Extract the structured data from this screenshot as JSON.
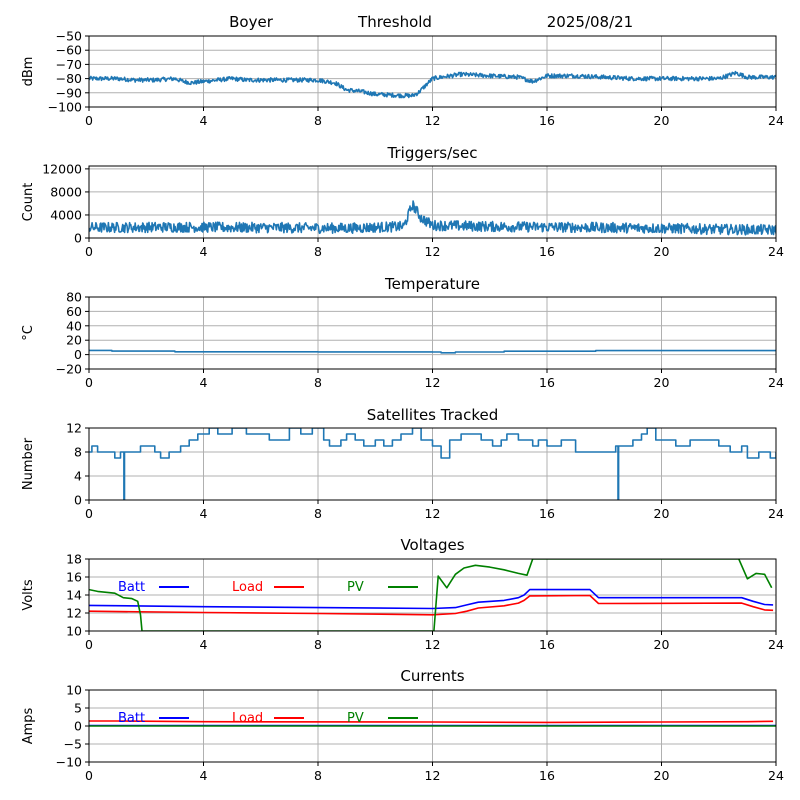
{
  "header": {
    "site": "Boyer",
    "mode": "Threshold",
    "date": "2025/08/21"
  },
  "colors": {
    "series": "#1f77b4",
    "batt": "#0000ff",
    "load": "#ff0000",
    "pv": "#008000",
    "grid": "#b0b0b0"
  },
  "chart_data": [
    {
      "id": "signal",
      "type": "line",
      "title": "",
      "ylabel": "dBm",
      "xlim": [
        0,
        24
      ],
      "ylim": [
        -100,
        -50
      ],
      "xticks": [
        0,
        4,
        8,
        12,
        16,
        20,
        24
      ],
      "yticks": [
        -100,
        -90,
        -80,
        -70,
        -60,
        -50
      ],
      "grid": true,
      "series": [
        {
          "style": "noisy",
          "x": [
            0,
            1,
            1.6,
            2.3,
            3,
            3.3,
            3.6,
            4,
            5,
            5.5,
            6,
            7,
            8,
            8.6,
            9,
            9.5,
            10,
            11,
            11.3,
            11.5,
            12,
            12.3,
            13,
            14,
            15,
            15.5,
            16,
            17,
            18,
            19,
            20,
            21,
            22,
            22.6,
            23,
            24
          ],
          "y": [
            -80,
            -80,
            -81,
            -81,
            -80,
            -82,
            -83,
            -82,
            -80,
            -81,
            -81,
            -81,
            -81,
            -83,
            -88,
            -89,
            -91,
            -92,
            -92,
            -90,
            -80,
            -79,
            -77,
            -78,
            -79,
            -82,
            -78,
            -78,
            -79,
            -80,
            -80,
            -80,
            -80,
            -76,
            -79,
            -79
          ],
          "noise": 1.5
        }
      ]
    },
    {
      "id": "triggers",
      "type": "line",
      "title": "Triggers/sec",
      "ylabel": "Count",
      "xlim": [
        0,
        24
      ],
      "ylim": [
        0,
        12500
      ],
      "xticks": [
        0,
        4,
        8,
        12,
        16,
        20,
        24
      ],
      "yticks": [
        0,
        4000,
        8000,
        12000
      ],
      "grid": true,
      "series": [
        {
          "style": "noisy",
          "x": [
            0,
            3,
            6,
            9,
            11,
            11.3,
            11.6,
            12,
            14,
            16,
            20,
            22,
            24
          ],
          "y": [
            1800,
            1900,
            1800,
            1700,
            2000,
            5800,
            3500,
            2200,
            2000,
            1900,
            1700,
            1500,
            1400
          ],
          "noise": 900
        }
      ]
    },
    {
      "id": "temperature",
      "type": "line",
      "title": "Temperature",
      "ylabel": "°C",
      "xlim": [
        0,
        24
      ],
      "ylim": [
        -20,
        80
      ],
      "xticks": [
        0,
        4,
        8,
        12,
        16,
        20,
        24
      ],
      "yticks": [
        -20,
        0,
        20,
        40,
        60,
        80
      ],
      "grid": true,
      "series": [
        {
          "style": "step",
          "x": [
            0,
            0.8,
            3,
            8,
            12,
            12.3,
            12.8,
            14.5,
            17.7,
            24
          ],
          "y": [
            5.8,
            4.8,
            3.9,
            3.7,
            3.6,
            2.5,
            3.6,
            4.7,
            5.5,
            5.5
          ]
        }
      ]
    },
    {
      "id": "satellites",
      "type": "line",
      "title": "Satellites Tracked",
      "ylabel": "Number",
      "xlim": [
        0,
        24
      ],
      "ylim": [
        0,
        12
      ],
      "xticks": [
        0,
        4,
        8,
        12,
        16,
        20,
        24
      ],
      "yticks": [
        0,
        4,
        8,
        12
      ],
      "grid": true,
      "series": [
        {
          "style": "step",
          "x": [
            0,
            0.1,
            0.3,
            0.9,
            1.1,
            1.22,
            1.24,
            1.4,
            1.8,
            2.3,
            2.5,
            2.8,
            3.2,
            3.5,
            3.8,
            4.2,
            4.5,
            5.0,
            5.5,
            6.3,
            7,
            7.4,
            7.8,
            8.2,
            8.4,
            8.8,
            9,
            9.3,
            9.6,
            10,
            10.3,
            10.6,
            10.9,
            11.3,
            11.6,
            12,
            12.3,
            12.6,
            13,
            13.7,
            14.1,
            14.4,
            14.6,
            15,
            15.5,
            15.7,
            16,
            16.5,
            17,
            17.5,
            18,
            18.4,
            18.48,
            18.5,
            18.7,
            19,
            19.3,
            19.5,
            19.8,
            20.5,
            21,
            22,
            22.4,
            22.8,
            23.0,
            23.4,
            23.8,
            24
          ],
          "y": [
            8,
            9,
            8,
            7,
            8,
            0,
            8,
            8,
            9,
            8,
            7,
            8,
            9,
            10,
            11,
            12,
            11,
            12,
            11,
            10,
            12,
            11,
            12,
            10,
            9,
            10,
            11,
            10,
            9,
            10,
            9,
            10,
            11,
            12,
            10,
            9,
            7,
            10,
            11,
            10,
            9,
            10,
            11,
            10,
            9,
            10,
            9,
            10,
            8,
            8,
            8,
            9,
            0,
            9,
            9,
            10,
            11,
            12,
            10,
            9,
            10,
            9,
            8,
            9,
            7,
            8,
            7,
            8
          ]
        }
      ]
    },
    {
      "id": "voltages",
      "type": "line",
      "title": "Voltages",
      "ylabel": "Volts",
      "xlim": [
        0,
        24
      ],
      "ylim": [
        10,
        18
      ],
      "xticks": [
        0,
        4,
        8,
        12,
        16,
        20,
        24
      ],
      "yticks": [
        10,
        12,
        14,
        16,
        18
      ],
      "grid": true,
      "series": [
        {
          "name": "Batt",
          "color": "#0000ff",
          "x": [
            0,
            4,
            8,
            12,
            12.8,
            13.2,
            13.6,
            14.5,
            15,
            15.2,
            15.4,
            17.5,
            17.8,
            22.8,
            23.2,
            23.6,
            23.9
          ],
          "y": [
            12.85,
            12.7,
            12.6,
            12.5,
            12.6,
            12.9,
            13.2,
            13.4,
            13.7,
            14.0,
            14.6,
            14.6,
            13.7,
            13.7,
            13.3,
            12.95,
            12.9
          ]
        },
        {
          "name": "Load",
          "color": "#ff0000",
          "x": [
            0,
            4,
            8,
            12,
            12.8,
            13.2,
            13.6,
            14.5,
            15,
            15.2,
            15.4,
            17.5,
            17.8,
            22.8,
            23.2,
            23.6,
            23.9
          ],
          "y": [
            12.2,
            12.05,
            11.95,
            11.8,
            11.95,
            12.2,
            12.55,
            12.8,
            13.1,
            13.4,
            13.9,
            13.95,
            13.05,
            13.1,
            12.7,
            12.35,
            12.3
          ]
        },
        {
          "name": "PV",
          "color": "#008000",
          "x": [
            0,
            0.3,
            0.6,
            0.9,
            1.2,
            1.5,
            1.7,
            1.8,
            1.85,
            12.05,
            12.2,
            12.5,
            12.8,
            13.1,
            13.5,
            14,
            14.5,
            15,
            15.3,
            15.5,
            22.7,
            23.0,
            23.3,
            23.6,
            23.85
          ],
          "y": [
            14.6,
            14.4,
            14.3,
            14.2,
            13.7,
            13.6,
            13.3,
            11.8,
            10,
            10,
            16.1,
            14.8,
            16.3,
            17.0,
            17.3,
            17.1,
            16.8,
            16.4,
            16.2,
            18,
            18,
            15.8,
            16.4,
            16.3,
            14.8
          ]
        }
      ]
    },
    {
      "id": "currents",
      "type": "line",
      "title": "Currents",
      "ylabel": "Amps",
      "xlim": [
        0,
        24
      ],
      "ylim": [
        -10,
        10
      ],
      "xticks": [
        0,
        4,
        8,
        12,
        16,
        20,
        24
      ],
      "yticks": [
        -10,
        -5,
        0,
        5,
        10
      ],
      "grid": true,
      "series": [
        {
          "name": "Batt",
          "color": "#0000ff",
          "x": [
            0,
            24
          ],
          "y": [
            0.1,
            0.1
          ]
        },
        {
          "name": "Load",
          "color": "#ff0000",
          "x": [
            0,
            1,
            4,
            12,
            16,
            20,
            23,
            23.9
          ],
          "y": [
            1.4,
            1.4,
            1.2,
            1.1,
            1.0,
            1.1,
            1.2,
            1.3
          ]
        },
        {
          "name": "PV",
          "color": "#008000",
          "x": [
            0,
            24
          ],
          "y": [
            0,
            0
          ]
        }
      ]
    }
  ]
}
